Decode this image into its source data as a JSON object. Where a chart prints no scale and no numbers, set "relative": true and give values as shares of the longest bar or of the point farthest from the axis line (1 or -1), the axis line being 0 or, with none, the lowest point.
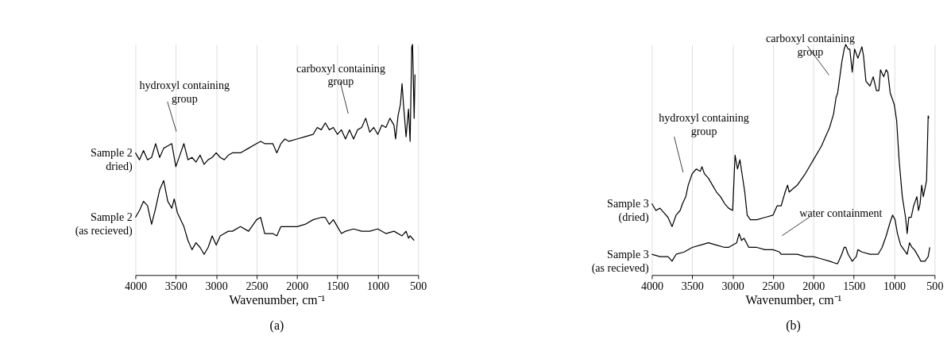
{
  "chart_data": [
    {
      "type": "line",
      "relative": true,
      "title": "(a)",
      "xlabel": "Wavenumber, cm⁻¹",
      "xlim": [
        4000,
        500
      ],
      "xticks": [
        4000,
        3500,
        3000,
        2500,
        2000,
        1500,
        1000,
        500
      ],
      "grid": "x",
      "line_style": "solid",
      "annotations": [
        "hydroxyl containing group",
        "carboxyl containing group"
      ],
      "series": [
        {
          "name": "Sample 2 dried)",
          "color": "#000000",
          "x": [
            4000,
            3950,
            3900,
            3850,
            3800,
            3750,
            3700,
            3650,
            3600,
            3550,
            3500,
            3450,
            3400,
            3350,
            3300,
            3250,
            3200,
            3150,
            3100,
            3050,
            3000,
            2950,
            2900,
            2850,
            2800,
            2700,
            2600,
            2500,
            2450,
            2400,
            2300,
            2250,
            2200,
            2150,
            2100,
            2000,
            1900,
            1800,
            1750,
            1700,
            1650,
            1600,
            1550,
            1500,
            1450,
            1400,
            1350,
            1300,
            1250,
            1200,
            1150,
            1100,
            1050,
            1000,
            950,
            900,
            850,
            800,
            780,
            750,
            720,
            700,
            680,
            650,
            620,
            600,
            580,
            570,
            550,
            540
          ],
          "values": [
            0.53,
            0.5,
            0.54,
            0.5,
            0.51,
            0.57,
            0.51,
            0.55,
            0.56,
            0.57,
            0.47,
            0.52,
            0.57,
            0.5,
            0.51,
            0.49,
            0.52,
            0.48,
            0.5,
            0.51,
            0.53,
            0.51,
            0.5,
            0.52,
            0.53,
            0.53,
            0.55,
            0.57,
            0.58,
            0.57,
            0.57,
            0.53,
            0.57,
            0.59,
            0.58,
            0.59,
            0.6,
            0.61,
            0.64,
            0.63,
            0.66,
            0.63,
            0.64,
            0.61,
            0.63,
            0.59,
            0.63,
            0.59,
            0.63,
            0.64,
            0.68,
            0.62,
            0.64,
            0.61,
            0.65,
            0.64,
            0.68,
            0.65,
            0.59,
            0.69,
            0.74,
            0.83,
            0.73,
            0.6,
            0.72,
            0.58,
            0.99,
            1.0,
            0.68,
            0.87
          ]
        },
        {
          "name": "Sample 2 (as recieved)",
          "color": "#000000",
          "x": [
            4000,
            3950,
            3900,
            3850,
            3800,
            3750,
            3700,
            3650,
            3600,
            3550,
            3520,
            3480,
            3400,
            3350,
            3300,
            3250,
            3200,
            3150,
            3100,
            3050,
            3000,
            2950,
            2900,
            2850,
            2800,
            2700,
            2600,
            2500,
            2450,
            2400,
            2300,
            2250,
            2200,
            2100,
            2000,
            1900,
            1800,
            1700,
            1650,
            1600,
            1550,
            1500,
            1450,
            1400,
            1300,
            1200,
            1100,
            1000,
            900,
            800,
            700,
            650,
            620,
            600,
            550
          ],
          "values": [
            0.25,
            0.28,
            0.32,
            0.3,
            0.22,
            0.29,
            0.37,
            0.41,
            0.32,
            0.29,
            0.33,
            0.27,
            0.21,
            0.15,
            0.11,
            0.14,
            0.12,
            0.09,
            0.12,
            0.17,
            0.13,
            0.17,
            0.18,
            0.19,
            0.19,
            0.21,
            0.19,
            0.24,
            0.25,
            0.18,
            0.18,
            0.17,
            0.21,
            0.21,
            0.21,
            0.22,
            0.24,
            0.25,
            0.25,
            0.22,
            0.24,
            0.21,
            0.18,
            0.19,
            0.2,
            0.19,
            0.19,
            0.2,
            0.18,
            0.19,
            0.17,
            0.19,
            0.16,
            0.17,
            0.15
          ]
        }
      ]
    },
    {
      "type": "line",
      "relative": true,
      "title": "(b)",
      "xlabel": "Wavenumber, cm⁻¹",
      "xlim": [
        4000,
        500
      ],
      "xticks": [
        4000,
        3500,
        3000,
        2500,
        2000,
        1500,
        1000,
        500
      ],
      "grid": "x",
      "line_style": "solid",
      "annotations": [
        "hydroxyl containing group",
        "carboxyl containing group",
        "water containment"
      ],
      "series": [
        {
          "name": "Sample 3 (dried)",
          "color": "#000000",
          "x": [
            4000,
            3950,
            3900,
            3850,
            3800,
            3750,
            3700,
            3650,
            3620,
            3580,
            3550,
            3500,
            3450,
            3400,
            3380,
            3350,
            3300,
            3250,
            3200,
            3150,
            3100,
            3050,
            3000,
            2970,
            2940,
            2910,
            2880,
            2850,
            2820,
            2780,
            2700,
            2600,
            2500,
            2450,
            2400,
            2350,
            2320,
            2300,
            2200,
            2100,
            2000,
            1900,
            1850,
            1800,
            1750,
            1720,
            1700,
            1650,
            1620,
            1600,
            1570,
            1550,
            1520,
            1490,
            1450,
            1420,
            1400,
            1380,
            1350,
            1300,
            1260,
            1220,
            1190,
            1170,
            1130,
            1100,
            1080,
            1050,
            1000,
            970,
            940,
            900,
            860,
            840,
            820,
            790,
            760,
            720,
            700,
            680,
            660,
            640,
            600,
            580,
            570
          ],
          "values": [
            0.31,
            0.28,
            0.29,
            0.27,
            0.25,
            0.21,
            0.26,
            0.28,
            0.31,
            0.34,
            0.39,
            0.44,
            0.46,
            0.45,
            0.47,
            0.44,
            0.42,
            0.39,
            0.36,
            0.34,
            0.31,
            0.29,
            0.28,
            0.52,
            0.46,
            0.5,
            0.43,
            0.36,
            0.26,
            0.24,
            0.24,
            0.25,
            0.26,
            0.3,
            0.3,
            0.36,
            0.39,
            0.36,
            0.39,
            0.44,
            0.5,
            0.56,
            0.6,
            0.64,
            0.7,
            0.77,
            0.79,
            0.92,
            0.98,
            1.0,
            0.98,
            0.98,
            0.88,
            0.98,
            0.94,
            0.97,
            0.99,
            0.95,
            0.84,
            0.82,
            0.86,
            0.8,
            0.8,
            0.89,
            0.86,
            0.89,
            0.88,
            0.79,
            0.74,
            0.67,
            0.5,
            0.34,
            0.25,
            0.18,
            0.25,
            0.25,
            0.3,
            0.34,
            0.28,
            0.31,
            0.39,
            0.34,
            0.41,
            0.69,
            0.68
          ]
        },
        {
          "name": "Sample 3 (as recieved)",
          "color": "#000000",
          "x": [
            4000,
            3900,
            3800,
            3750,
            3700,
            3600,
            3500,
            3400,
            3300,
            3200,
            3100,
            3050,
            3000,
            2950,
            2920,
            2890,
            2860,
            2800,
            2700,
            2600,
            2500,
            2420,
            2400,
            2300,
            2200,
            2100,
            2000,
            1900,
            1800,
            1720,
            1700,
            1650,
            1620,
            1600,
            1570,
            1520,
            1470,
            1450,
            1400,
            1300,
            1200,
            1150,
            1100,
            1050,
            1020,
            990,
            960,
            920,
            880,
            840,
            810,
            780,
            750,
            700,
            670,
            620,
            580,
            560
          ],
          "values": [
            0.09,
            0.08,
            0.08,
            0.06,
            0.09,
            0.1,
            0.12,
            0.13,
            0.14,
            0.13,
            0.12,
            0.12,
            0.13,
            0.14,
            0.18,
            0.15,
            0.16,
            0.12,
            0.12,
            0.11,
            0.11,
            0.1,
            0.09,
            0.09,
            0.09,
            0.08,
            0.08,
            0.07,
            0.06,
            0.05,
            0.05,
            0.09,
            0.12,
            0.12,
            0.09,
            0.06,
            0.08,
            0.11,
            0.1,
            0.09,
            0.09,
            0.12,
            0.17,
            0.23,
            0.26,
            0.24,
            0.18,
            0.13,
            0.11,
            0.09,
            0.14,
            0.12,
            0.11,
            0.08,
            0.06,
            0.06,
            0.08,
            0.12
          ]
        }
      ]
    }
  ]
}
